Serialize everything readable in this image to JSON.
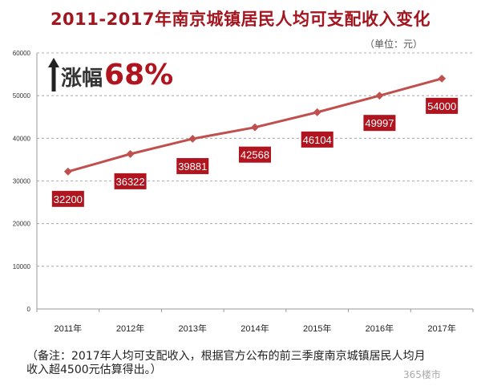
{
  "chart_data": {
    "type": "line",
    "title": "2011-2017年南京城镇居民人均可支配收入变化",
    "unit_note": "（单位：元）",
    "categories": [
      "2011年",
      "2012年",
      "2013年",
      "2014年",
      "2015年",
      "2016年",
      "2017年"
    ],
    "values": [
      32200,
      36322,
      39881,
      42568,
      46104,
      49997,
      54000
    ],
    "data_labels": [
      "32200",
      "36322",
      "39881",
      "42568",
      "46104",
      "49997",
      "54000"
    ],
    "ylim": [
      0,
      60000
    ],
    "yticks": [
      "0",
      "10000",
      "20000",
      "30000",
      "40000",
      "50000",
      "60000"
    ],
    "grid": true,
    "xlabel": "",
    "ylabel": "",
    "line_color": "#c0504d",
    "label_color": "#b0141e",
    "annotation": {
      "label": "涨幅",
      "value": "68%"
    },
    "footnote": "（备注：2017年人均可支配收入，根据官方公布的前三季度南京城镇居民人均月收入超4500元估算得出。）",
    "watermark": "365楼市"
  }
}
